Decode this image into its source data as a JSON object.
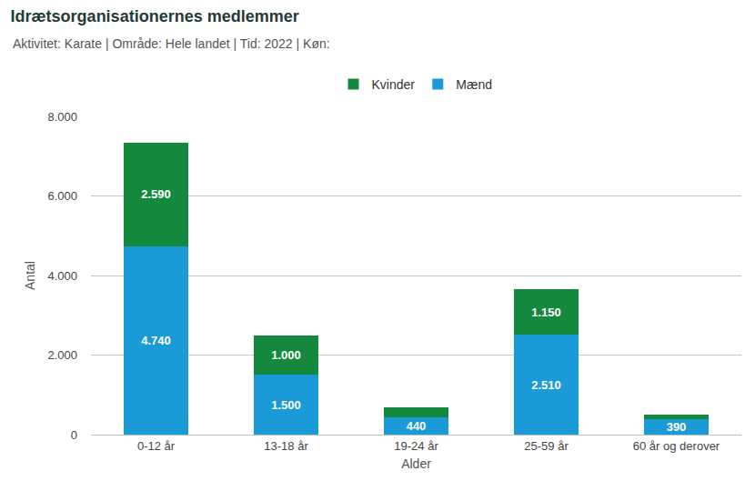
{
  "chart_data": {
    "type": "bar",
    "title": "Idrætsorganisationernes medlemmer",
    "subtitle": "Aktivitet: Karate | Område: Hele landet | Tid: 2022 | Køn:",
    "x_label": "Alder",
    "y_label": "Antal",
    "categories": [
      "0-12 år",
      "13-18 år",
      "19-24 år",
      "25-59 år",
      "60 år og derover"
    ],
    "series": [
      {
        "name": "Mænd",
        "color": "#1a9ad6",
        "values": [
          4740,
          1500,
          440,
          2510,
          390
        ],
        "value_labels": [
          "4.740",
          "1.500",
          "440",
          "2.510",
          "390"
        ]
      },
      {
        "name": "Kvinder",
        "color": "#14893e",
        "values": [
          2590,
          1000,
          250,
          1150,
          110
        ],
        "value_labels": [
          "2.590",
          "1.000",
          null,
          "1.150",
          null
        ]
      }
    ],
    "stacked": true,
    "data_labels": true,
    "legend": "top",
    "grid": true,
    "ylim": [
      0,
      8000
    ],
    "yticks": [
      0,
      {
        "value": 2000,
        "label": "2.000"
      },
      {
        "value": 4000,
        "label": "4.000"
      },
      {
        "value": 6000,
        "label": "6.000"
      },
      {
        "value": 8000,
        "label": "8.000"
      }
    ]
  }
}
